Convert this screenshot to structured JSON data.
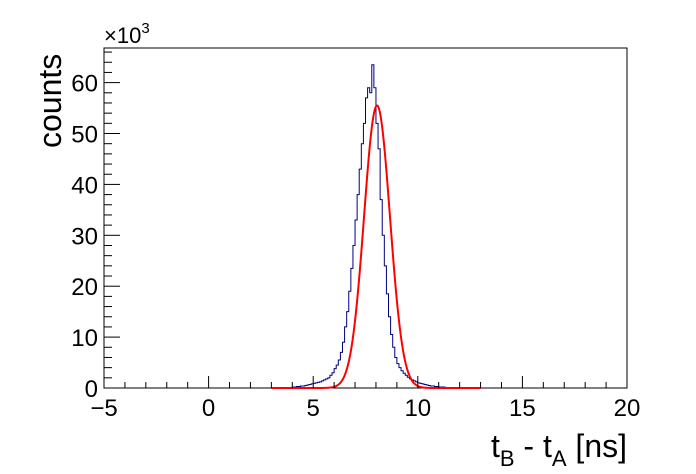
{
  "chart_data": {
    "type": "histogram",
    "xlabel": {
      "main": "t",
      "sub1": "B",
      "mid": " - t",
      "sub2": "A",
      "tail": " [ns]"
    },
    "ylabel": "counts",
    "y_multiplier": {
      "base": "×10",
      "exp": "3"
    },
    "xlim": [
      -5,
      20
    ],
    "ylim": [
      0,
      66.8
    ],
    "x_ticks": [
      -5,
      0,
      5,
      10,
      15,
      20
    ],
    "x_tick_labels": [
      "−5",
      "0",
      "5",
      "10",
      "15",
      "20"
    ],
    "y_ticks": [
      0,
      10,
      20,
      30,
      40,
      50,
      60
    ],
    "y_tick_labels": [
      "0",
      "10",
      "20",
      "30",
      "40",
      "50",
      "60"
    ],
    "grid": false,
    "legend": false,
    "series": [
      {
        "kind": "histogram",
        "color": "#000080",
        "x_range": [
          3.0,
          13.0
        ],
        "bin_width": 0.1,
        "values": [
          0.1,
          0.1,
          0.1,
          0.1,
          0.1,
          0.1,
          0.1,
          0.1,
          0.1,
          0.1,
          0.2,
          0.2,
          0.3,
          0.3,
          0.4,
          0.4,
          0.5,
          0.6,
          0.7,
          0.8,
          0.9,
          1.0,
          1.1,
          1.2,
          1.4,
          1.6,
          1.8,
          2.0,
          2.5,
          3.0,
          3.8,
          4.5,
          5.5,
          7.0,
          9.0,
          12.0,
          15.0,
          19.0,
          23.5,
          28.0,
          33.0,
          38.0,
          43.0,
          48.0,
          52.0,
          57.0,
          59.0,
          58.0,
          63.5,
          59.0,
          52.0,
          47.0,
          37.0,
          30.0,
          24.0,
          18.5,
          14.0,
          10.5,
          8.0,
          6.0,
          4.8,
          4.0,
          3.4,
          2.9,
          2.5,
          2.1,
          1.8,
          1.6,
          1.4,
          1.2,
          1.0,
          0.9,
          0.8,
          0.7,
          0.6,
          0.5,
          0.4,
          0.4,
          0.3,
          0.3,
          0.2,
          0.2,
          0.2,
          0.1,
          0.1,
          0.1,
          0.1,
          0.1,
          0.1,
          0.1,
          0.1,
          0.1,
          0.1,
          0.1,
          0.1,
          0.1,
          0.1,
          0.1,
          0.1,
          0.1
        ]
      },
      {
        "kind": "gaussian-fit",
        "color": "#ff0000",
        "amplitude": 55.5,
        "mean": 8.05,
        "sigma": 0.62,
        "x_range": [
          3.0,
          13.0
        ]
      }
    ]
  }
}
